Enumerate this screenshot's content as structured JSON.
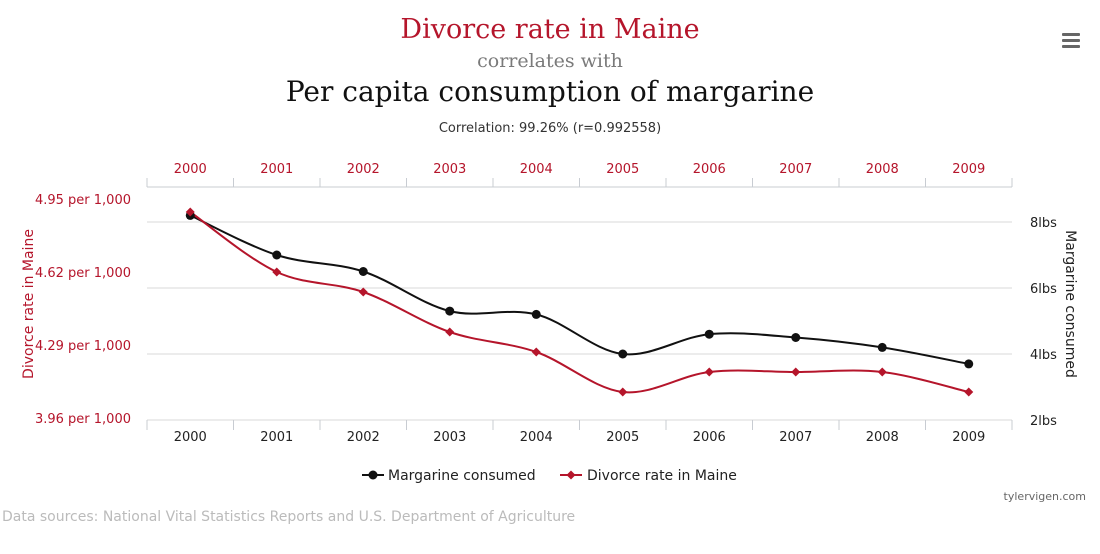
{
  "colors": {
    "divorce": "#b5152b",
    "margarine": "#111111",
    "grid": "#d9d9d9",
    "axis": "#c8ccd2"
  },
  "header": {
    "title_primary": "Divorce rate in Maine",
    "title_connector": "correlates with",
    "title_secondary": "Per capita consumption of margarine",
    "correlation": "Correlation: 99.26% (r=0.992558)"
  },
  "menu": {
    "icon": "hamburger-menu-icon"
  },
  "chart_data": {
    "type": "line",
    "x": [
      2000,
      2001,
      2002,
      2003,
      2004,
      2005,
      2006,
      2007,
      2008,
      2009
    ],
    "x_tick_labels": [
      "2000",
      "2001",
      "2002",
      "2003",
      "2004",
      "2005",
      "2006",
      "2007",
      "2008",
      "2009"
    ],
    "series": [
      {
        "name": "Margarine consumed",
        "axis": "right",
        "marker": "circle",
        "values": [
          8.2,
          7.0,
          6.5,
          5.3,
          5.2,
          4.0,
          4.6,
          4.5,
          4.2,
          3.7
        ]
      },
      {
        "name": "Divorce rate in Maine",
        "axis": "left",
        "marker": "diamond",
        "values": [
          5.0,
          4.7,
          4.6,
          4.4,
          4.3,
          4.1,
          4.2,
          4.2,
          4.2,
          4.1
        ]
      }
    ],
    "left_axis": {
      "label": "Divorce rate in Maine",
      "ticks": [
        "4.95 per 1,000",
        "4.62 per 1,000",
        "4.29 per 1,000",
        "3.96 per 1,000"
      ],
      "tick_values": [
        4.95,
        4.62,
        4.29,
        3.96
      ]
    },
    "right_axis": {
      "label": "Margarine consumed",
      "ticks": [
        "8lbs",
        "6lbs",
        "4lbs",
        "2lbs"
      ],
      "tick_values": [
        8,
        6,
        4,
        2
      ]
    },
    "grid": true,
    "legend_position": "bottom-center"
  },
  "footer": {
    "credit": "tylervigen.com",
    "sources": "Data sources: National Vital Statistics Reports and U.S. Department of Agriculture"
  }
}
